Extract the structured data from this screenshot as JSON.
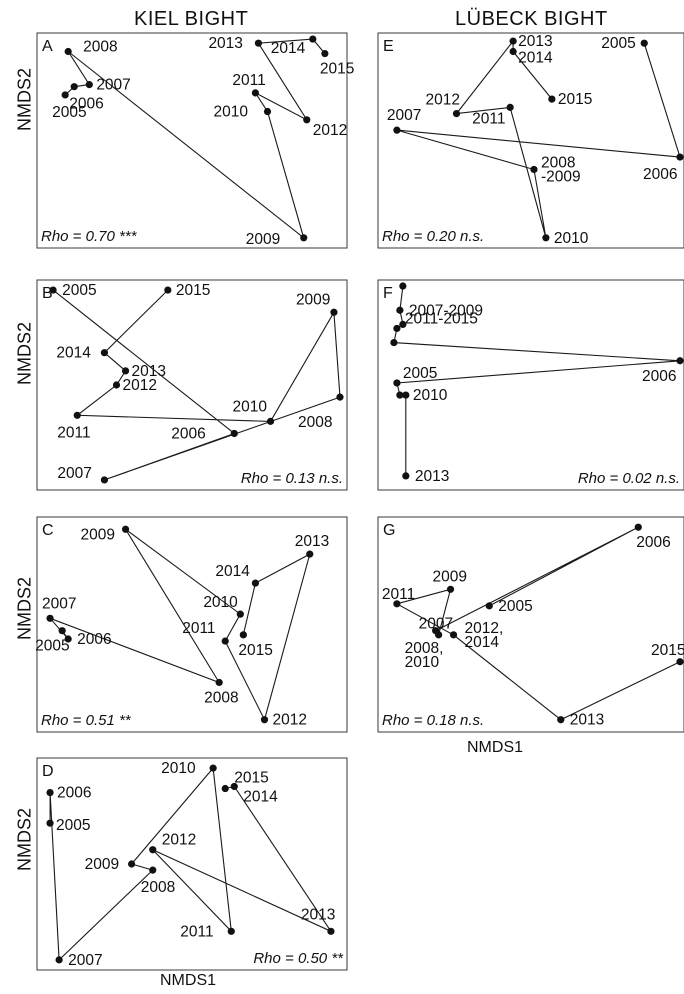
{
  "headers": {
    "left": "KIEL BIGHT",
    "right": "LÜBECK BIGHT"
  },
  "axis": {
    "y": "NMDS2",
    "x": "NMDS1"
  },
  "chart_data": [
    {
      "type": "scatter",
      "panel": "A",
      "group": "KIEL BIGHT",
      "stat": "Rho = 0.70 ***",
      "xlim": [
        0,
        100
      ],
      "ylim": [
        0,
        100
      ],
      "points": [
        {
          "x": 8,
          "y": 72,
          "label": "2005"
        },
        {
          "x": 11,
          "y": 76,
          "label": "2006"
        },
        {
          "x": 16,
          "y": 77,
          "label": "2007"
        },
        {
          "x": 9,
          "y": 93,
          "label": "2008"
        },
        {
          "x": 87,
          "y": 3,
          "label": "2009"
        },
        {
          "x": 75,
          "y": 64,
          "label": "2010"
        },
        {
          "x": 71,
          "y": 73,
          "label": "2011"
        },
        {
          "x": 88,
          "y": 60,
          "label": "2012"
        },
        {
          "x": 72,
          "y": 97,
          "label": "2013"
        },
        {
          "x": 90,
          "y": 99,
          "label": "2014"
        },
        {
          "x": 94,
          "y": 92,
          "label": "2015"
        }
      ]
    },
    {
      "type": "scatter",
      "panel": "B",
      "group": "KIEL BIGHT",
      "stat": "Rho = 0.13 n.s.",
      "xlim": [
        0,
        100
      ],
      "ylim": [
        0,
        100
      ],
      "points": [
        {
          "x": 4,
          "y": 97,
          "label": "2005"
        },
        {
          "x": 64,
          "y": 26,
          "label": "2006"
        },
        {
          "x": 21,
          "y": 3,
          "label": "2007"
        },
        {
          "x": 99,
          "y": 44,
          "label": "2008"
        },
        {
          "x": 97,
          "y": 86,
          "label": "2009"
        },
        {
          "x": 76,
          "y": 32,
          "label": "2010"
        },
        {
          "x": 12,
          "y": 35,
          "label": "2011"
        },
        {
          "x": 25,
          "y": 50,
          "label": "2012"
        },
        {
          "x": 28,
          "y": 57,
          "label": "2013"
        },
        {
          "x": 21,
          "y": 66,
          "label": "2014"
        },
        {
          "x": 42,
          "y": 97,
          "label": "2015"
        }
      ]
    },
    {
      "type": "scatter",
      "panel": "C",
      "group": "KIEL BIGHT",
      "stat": "Rho = 0.51 **",
      "xlim": [
        0,
        100
      ],
      "ylim": [
        0,
        100
      ],
      "points": [
        {
          "x": 7,
          "y": 47,
          "label": "2005"
        },
        {
          "x": 9,
          "y": 43,
          "label": "2006"
        },
        {
          "x": 3,
          "y": 53,
          "label": "2007"
        },
        {
          "x": 59,
          "y": 22,
          "label": "2008"
        },
        {
          "x": 28,
          "y": 96,
          "label": "2009"
        },
        {
          "x": 66,
          "y": 55,
          "label": "2010"
        },
        {
          "x": 61,
          "y": 42,
          "label": "2011"
        },
        {
          "x": 74,
          "y": 4,
          "label": "2012"
        },
        {
          "x": 89,
          "y": 84,
          "label": "2013"
        },
        {
          "x": 71,
          "y": 70,
          "label": "2014"
        },
        {
          "x": 67,
          "y": 45,
          "label": "2015"
        }
      ]
    },
    {
      "type": "scatter",
      "panel": "D",
      "group": "KIEL BIGHT",
      "stat": "Rho = 0.50 **",
      "xlim": [
        0,
        100
      ],
      "ylim": [
        0,
        100
      ],
      "points": [
        {
          "x": 3,
          "y": 70,
          "label": "2005"
        },
        {
          "x": 3,
          "y": 85,
          "label": "2006"
        },
        {
          "x": 6,
          "y": 3,
          "label": "2007"
        },
        {
          "x": 37,
          "y": 47,
          "label": "2008"
        },
        {
          "x": 30,
          "y": 50,
          "label": "2009"
        },
        {
          "x": 57,
          "y": 97,
          "label": "2010"
        },
        {
          "x": 63,
          "y": 17,
          "label": "2011"
        },
        {
          "x": 37,
          "y": 57,
          "label": "2012"
        },
        {
          "x": 96,
          "y": 17,
          "label": "2013"
        },
        {
          "x": 64,
          "y": 88,
          "label": "2014"
        },
        {
          "x": 61,
          "y": 87,
          "label": "2015"
        }
      ]
    },
    {
      "type": "scatter",
      "panel": "E",
      "group": "LÜBECK BIGHT",
      "stat": "Rho = 0.20 n.s.",
      "xlim": [
        0,
        100
      ],
      "ylim": [
        0,
        100
      ],
      "points": [
        {
          "x": 88,
          "y": 97,
          "label": "2005"
        },
        {
          "x": 100,
          "y": 42,
          "label": "2006"
        },
        {
          "x": 5,
          "y": 55,
          "label": "2007"
        },
        {
          "x": 51,
          "y": 36,
          "label": "2008 -2009"
        },
        {
          "x": 55,
          "y": 3,
          "label": "2010"
        },
        {
          "x": 43,
          "y": 66,
          "label": "2011"
        },
        {
          "x": 25,
          "y": 63,
          "label": "2012"
        },
        {
          "x": 44,
          "y": 98,
          "label": "2013"
        },
        {
          "x": 44,
          "y": 93,
          "label": "2014"
        },
        {
          "x": 57,
          "y": 70,
          "label": "2015"
        }
      ]
    },
    {
      "type": "scatter",
      "panel": "F",
      "group": "LÜBECK BIGHT",
      "stat": "Rho = 0.02 n.s.",
      "xlim": [
        0,
        100
      ],
      "ylim": [
        0,
        100
      ],
      "points": [
        {
          "x": 7,
          "y": 99,
          "label": ""
        },
        {
          "x": 6,
          "y": 87,
          "label": "2007-2009"
        },
        {
          "x": 7,
          "y": 80,
          "label": "2011-2015"
        },
        {
          "x": 5,
          "y": 78,
          "label": ""
        },
        {
          "x": 4,
          "y": 71,
          "label": ""
        },
        {
          "x": 100,
          "y": 62,
          "label": "2006"
        },
        {
          "x": 5,
          "y": 51,
          "label": "2005"
        },
        {
          "x": 6,
          "y": 45,
          "label": ""
        },
        {
          "x": 8,
          "y": 45,
          "label": "2010"
        },
        {
          "x": 8,
          "y": 5,
          "label": "2013"
        }
      ],
      "path": [
        0,
        1,
        2,
        3,
        4,
        5,
        6,
        7,
        8,
        9
      ]
    },
    {
      "type": "scatter",
      "panel": "G",
      "group": "LÜBECK BIGHT",
      "stat": "Rho = 0.18 n.s.",
      "xlim": [
        0,
        100
      ],
      "ylim": [
        0,
        100
      ],
      "points": [
        {
          "x": 36,
          "y": 59,
          "label": "2005"
        },
        {
          "x": 86,
          "y": 97,
          "label": "2006"
        },
        {
          "x": 18,
          "y": 47,
          "label": "2007"
        },
        {
          "x": 19,
          "y": 45,
          "label": "2008, 2010"
        },
        {
          "x": 23,
          "y": 67,
          "label": "2009"
        },
        {
          "x": 5,
          "y": 60,
          "label": "2011"
        },
        {
          "x": 24,
          "y": 45,
          "label": "2012, 2014"
        },
        {
          "x": 60,
          "y": 4,
          "label": "2013"
        },
        {
          "x": 100,
          "y": 32,
          "label": "2015"
        }
      ]
    }
  ]
}
